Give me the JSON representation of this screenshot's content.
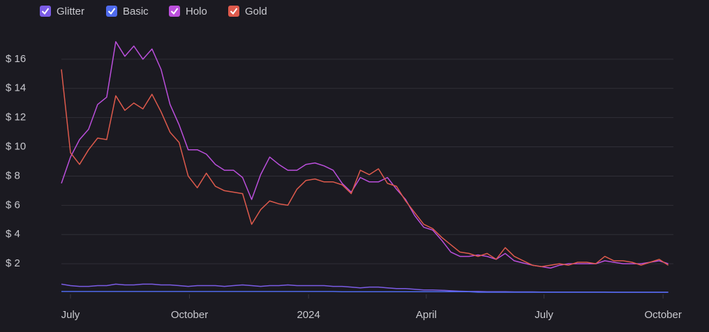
{
  "chart_data": {
    "type": "line",
    "x": [
      "2023-06-24",
      "2023-07-01",
      "2023-07-08",
      "2023-07-15",
      "2023-07-22",
      "2023-07-29",
      "2023-08-05",
      "2023-08-12",
      "2023-08-19",
      "2023-08-26",
      "2023-09-02",
      "2023-09-09",
      "2023-09-16",
      "2023-09-23",
      "2023-09-30",
      "2023-10-07",
      "2023-10-14",
      "2023-10-21",
      "2023-10-28",
      "2023-11-04",
      "2023-11-11",
      "2023-11-18",
      "2023-11-25",
      "2023-12-02",
      "2023-12-09",
      "2023-12-16",
      "2023-12-23",
      "2023-12-30",
      "2024-01-06",
      "2024-01-13",
      "2024-01-20",
      "2024-01-27",
      "2024-02-03",
      "2024-02-10",
      "2024-02-17",
      "2024-02-24",
      "2024-03-02",
      "2024-03-09",
      "2024-03-16",
      "2024-03-23",
      "2024-03-30",
      "2024-04-06",
      "2024-04-13",
      "2024-04-20",
      "2024-04-27",
      "2024-05-04",
      "2024-05-11",
      "2024-05-18",
      "2024-05-25",
      "2024-06-01",
      "2024-06-08",
      "2024-06-15",
      "2024-06-22",
      "2024-06-29",
      "2024-07-06",
      "2024-07-13",
      "2024-07-20",
      "2024-07-27",
      "2024-08-03",
      "2024-08-10",
      "2024-08-17",
      "2024-08-24",
      "2024-08-31",
      "2024-09-07",
      "2024-09-14",
      "2024-09-21",
      "2024-09-28",
      "2024-10-05"
    ],
    "series": [
      {
        "name": "Glitter",
        "color": "#7b5ce6",
        "values": [
          0.6,
          0.5,
          0.45,
          0.45,
          0.5,
          0.5,
          0.6,
          0.55,
          0.55,
          0.6,
          0.6,
          0.55,
          0.55,
          0.5,
          0.45,
          0.5,
          0.5,
          0.5,
          0.45,
          0.5,
          0.55,
          0.5,
          0.45,
          0.5,
          0.5,
          0.55,
          0.5,
          0.5,
          0.5,
          0.5,
          0.45,
          0.45,
          0.4,
          0.35,
          0.4,
          0.4,
          0.35,
          0.3,
          0.3,
          0.25,
          0.2,
          0.2,
          0.18,
          0.15,
          0.12,
          0.1,
          0.1,
          0.08,
          0.08,
          0.08,
          0.07,
          0.07,
          0.07,
          0.06,
          0.06,
          0.06,
          0.06,
          0.06,
          0.06,
          0.06,
          0.06,
          0.05,
          0.05,
          0.05,
          0.05,
          0.05,
          0.05,
          0.05
        ]
      },
      {
        "name": "Basic",
        "color": "#4f6bed",
        "values": [
          0.1,
          0.1,
          0.1,
          0.1,
          0.1,
          0.1,
          0.1,
          0.1,
          0.1,
          0.1,
          0.1,
          0.1,
          0.1,
          0.1,
          0.1,
          0.1,
          0.1,
          0.1,
          0.1,
          0.1,
          0.1,
          0.1,
          0.1,
          0.1,
          0.1,
          0.1,
          0.1,
          0.1,
          0.1,
          0.1,
          0.1,
          0.08,
          0.08,
          0.08,
          0.08,
          0.08,
          0.08,
          0.08,
          0.08,
          0.08,
          0.08,
          0.08,
          0.08,
          0.08,
          0.08,
          0.08,
          0.05,
          0.05,
          0.05,
          0.05,
          0.05,
          0.05,
          0.05,
          0.05,
          0.05,
          0.05,
          0.05,
          0.05,
          0.05,
          0.05,
          0.05,
          0.05,
          0.05,
          0.05,
          0.05,
          0.05,
          0.05,
          0.05
        ]
      },
      {
        "name": "Holo",
        "color": "#bb4fdc",
        "values": [
          7.5,
          9.3,
          10.5,
          11.2,
          12.9,
          13.4,
          17.2,
          16.2,
          16.9,
          16,
          16.7,
          15.3,
          12.9,
          11.5,
          9.8,
          9.8,
          9.5,
          8.8,
          8.4,
          8.4,
          7.9,
          6.4,
          8.1,
          9.3,
          8.8,
          8.4,
          8.4,
          8.8,
          8.9,
          8.7,
          8.4,
          7.5,
          6.9,
          7.9,
          7.6,
          7.6,
          7.9,
          7.1,
          6.4,
          5.3,
          4.5,
          4.3,
          3.6,
          2.8,
          2.5,
          2.5,
          2.6,
          2.5,
          2.3,
          2.7,
          2.2,
          2.05,
          1.9,
          1.8,
          1.7,
          1.9,
          2,
          2,
          2,
          2,
          2.2,
          2.1,
          2,
          2,
          2,
          2.1,
          2.2,
          2
        ]
      },
      {
        "name": "Gold",
        "color": "#de5a4c",
        "values": [
          15.3,
          9.6,
          8.8,
          9.8,
          10.6,
          10.5,
          13.5,
          12.5,
          13,
          12.6,
          13.6,
          12.4,
          11,
          10.3,
          8,
          7.2,
          8.2,
          7.3,
          7,
          6.9,
          6.8,
          4.7,
          5.7,
          6.3,
          6.1,
          6,
          7.1,
          7.7,
          7.8,
          7.6,
          7.6,
          7.4,
          6.8,
          8.4,
          8.1,
          8.5,
          7.5,
          7.3,
          6.3,
          5.5,
          4.7,
          4.4,
          3.8,
          3.3,
          2.8,
          2.7,
          2.5,
          2.7,
          2.3,
          3.1,
          2.5,
          2.2,
          1.9,
          1.8,
          1.9,
          2,
          1.9,
          2.1,
          2.1,
          2,
          2.5,
          2.2,
          2.2,
          2.1,
          1.9,
          2.1,
          2.3,
          1.9
        ]
      }
    ],
    "xlim": [
      "2023-06-24",
      "2024-10-09"
    ],
    "xticks": [
      {
        "value": "2023-07-01",
        "label": "July"
      },
      {
        "value": "2023-10-01",
        "label": "October"
      },
      {
        "value": "2024-01-01",
        "label": "2024"
      },
      {
        "value": "2024-04-01",
        "label": "April"
      },
      {
        "value": "2024-07-01",
        "label": "July"
      },
      {
        "value": "2024-10-01",
        "label": "October"
      }
    ],
    "ylim": [
      0,
      18
    ],
    "yticks": [
      {
        "value": 2,
        "label": "$ 2"
      },
      {
        "value": 4,
        "label": "$ 4"
      },
      {
        "value": 6,
        "label": "$ 6"
      },
      {
        "value": 8,
        "label": "$ 8"
      },
      {
        "value": 10,
        "label": "$ 10"
      },
      {
        "value": 12,
        "label": "$ 12"
      },
      {
        "value": 14,
        "label": "$ 14"
      },
      {
        "value": 16,
        "label": "$ 16"
      }
    ],
    "grid": true
  }
}
